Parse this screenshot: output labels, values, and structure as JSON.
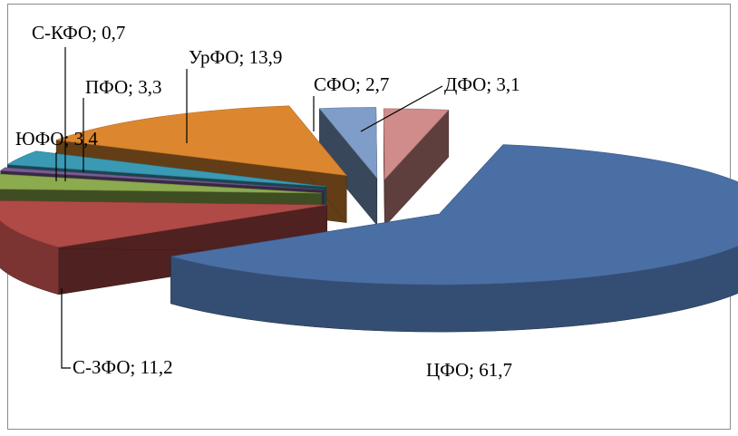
{
  "chart_data": {
    "type": "pie",
    "style": "3d-exploded",
    "title": "",
    "legend": "none",
    "slices": [
      {
        "name": "ЦФО",
        "value": 61.7,
        "label": "ЦФО; 61,7",
        "color": "#4a6fa5"
      },
      {
        "name": "С-ЗФО",
        "value": 11.2,
        "label": "С-ЗФО; 11,2",
        "color": "#b04a47"
      },
      {
        "name": "ЮФО",
        "value": 3.4,
        "label": "ЮФО; 3,4",
        "color": "#8caa4e"
      },
      {
        "name": "С-КФО",
        "value": 0.7,
        "label": "С-КФО; 0,7",
        "color": "#7a5c94"
      },
      {
        "name": "ПФО",
        "value": 3.3,
        "label": "ПФО; 3,3",
        "color": "#3a9ab3"
      },
      {
        "name": "УрФО",
        "value": 13.9,
        "label": "УрФО; 13,9",
        "color": "#dc8730"
      },
      {
        "name": "СФО",
        "value": 2.7,
        "label": "СФО; 2,7",
        "color": "#7f9dc8"
      },
      {
        "name": "ДФО",
        "value": 3.1,
        "label": "ДФО; 3,1",
        "color": "#d08c8a"
      }
    ]
  }
}
